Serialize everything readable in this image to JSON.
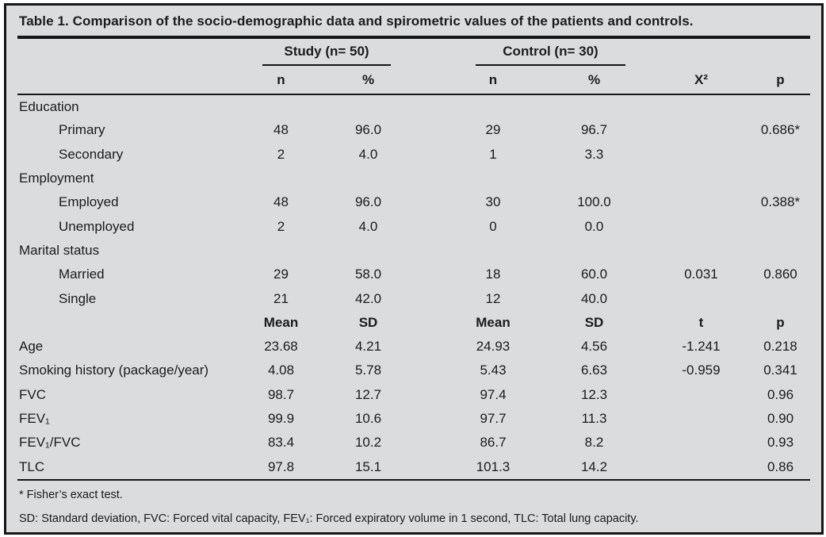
{
  "title": "Table 1. Comparison of the socio-demographic data and spirometric values of the patients and controls.",
  "colors": {
    "page_background": "#ffffff",
    "table_background": "#dbdcde",
    "border": "#151515",
    "text": "#1b1b1b"
  },
  "table": {
    "groups": [
      {
        "label": "Study (n= 50)"
      },
      {
        "label": "Control (n= 30)"
      }
    ],
    "count_headers": [
      "n",
      "%",
      "n",
      "%",
      "X²",
      "p"
    ],
    "rows": [
      {
        "type": "category",
        "label": "Education"
      },
      {
        "type": "data",
        "indent": true,
        "label": "Primary",
        "values": [
          "48",
          "96.0",
          "29",
          "96.7",
          "",
          "0.686*"
        ]
      },
      {
        "type": "data",
        "indent": true,
        "label": "Secondary",
        "values": [
          "2",
          "4.0",
          "1",
          "3.3",
          "",
          ""
        ]
      },
      {
        "type": "category",
        "label": "Employment"
      },
      {
        "type": "data",
        "indent": true,
        "label": "Employed",
        "values": [
          "48",
          "96.0",
          "30",
          "100.0",
          "",
          "0.388*"
        ]
      },
      {
        "type": "data",
        "indent": true,
        "label": "Unemployed",
        "values": [
          "2",
          "4.0",
          "0",
          "0.0",
          "",
          ""
        ]
      },
      {
        "type": "category",
        "label": "Marital status"
      },
      {
        "type": "data",
        "indent": true,
        "label": "Married",
        "values": [
          "29",
          "58.0",
          "18",
          "60.0",
          "0.031",
          "0.860"
        ]
      },
      {
        "type": "data",
        "indent": true,
        "label": "Single",
        "values": [
          "21",
          "42.0",
          "12",
          "40.0",
          "",
          ""
        ]
      },
      {
        "type": "statheader",
        "label": "",
        "values": [
          "Mean",
          "SD",
          "Mean",
          "SD",
          "t",
          "p"
        ]
      },
      {
        "type": "data",
        "label": "Age",
        "values": [
          "23.68",
          "4.21",
          "24.93",
          "4.56",
          "-1.241",
          "0.218"
        ]
      },
      {
        "type": "data",
        "label": "Smoking history (package/year)",
        "values": [
          "4.08",
          "5.78",
          "5.43",
          "6.63",
          "-0.959",
          "0.341"
        ]
      },
      {
        "type": "data",
        "label": "FVC",
        "values": [
          "98.7",
          "12.7",
          "97.4",
          "12.3",
          "",
          "0.96"
        ]
      },
      {
        "type": "data",
        "label": "FEV₁",
        "values": [
          "99.9",
          "10.6",
          "97.7",
          "11.3",
          "",
          "0.90"
        ]
      },
      {
        "type": "data",
        "label": "FEV₁/FVC",
        "values": [
          "83.4",
          "10.2",
          "86.7",
          "8.2",
          "",
          "0.93"
        ]
      },
      {
        "type": "data",
        "label": "TLC",
        "values": [
          "97.8",
          "15.1",
          "101.3",
          "14.2",
          "",
          "0.86"
        ]
      }
    ]
  },
  "footnotes": [
    "* Fisher’s exact test.",
    "SD: Standard deviation, FVC: Forced vital capacity, FEV₁: Forced expiratory volume in 1 second, TLC: Total lung capacity."
  ]
}
